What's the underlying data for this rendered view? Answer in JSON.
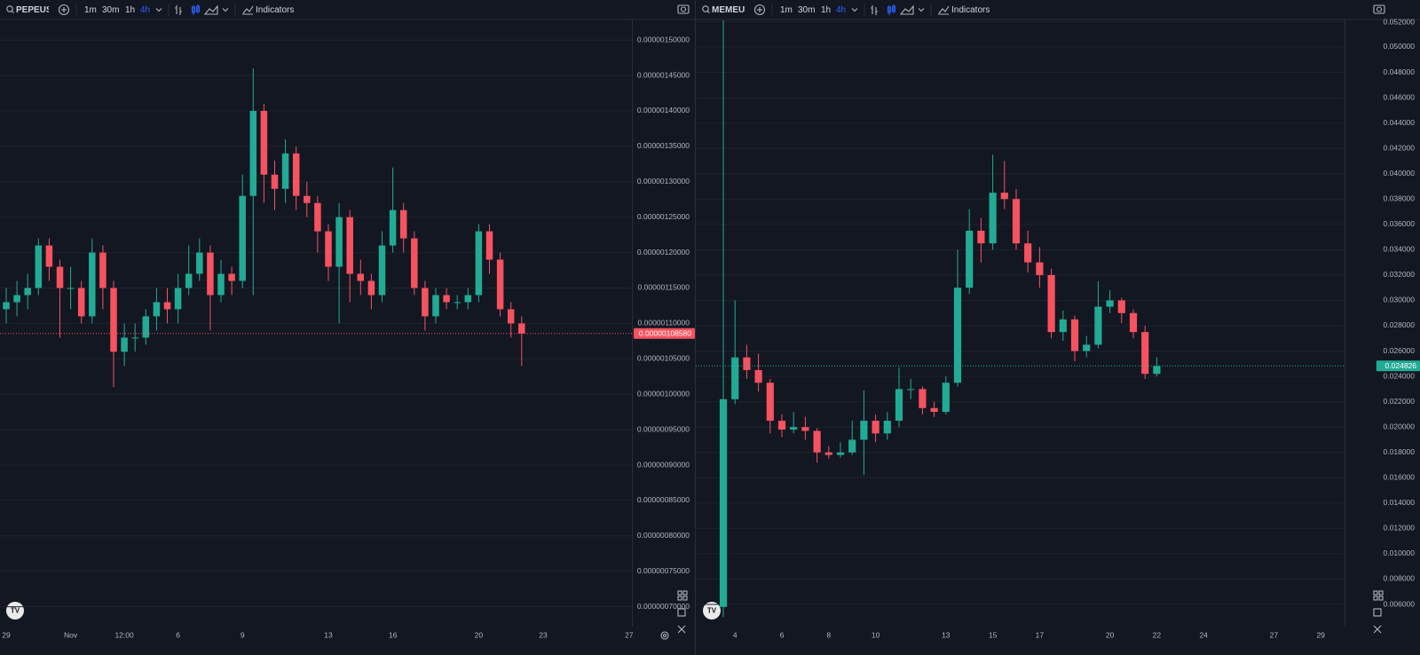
{
  "chart_data": [
    {
      "type": "candlestick",
      "symbol": "PEPEUSDT",
      "intervals": [
        "1m",
        "30m",
        "1h",
        "4h"
      ],
      "indicators": "Indicators",
      "categories": [
        "29",
        null,
        null,
        null,
        null,
        null,
        "Nov",
        null,
        null,
        null,
        null,
        "12:00",
        null,
        null,
        null,
        null,
        "6",
        null,
        null,
        null,
        null,
        null,
        "9",
        null,
        null,
        null,
        null,
        null,
        null,
        null,
        "13",
        null,
        null,
        null,
        null,
        null,
        "16",
        null,
        null,
        null,
        null,
        null,
        null,
        null,
        "20",
        null,
        null,
        null,
        null,
        null,
        "23",
        null,
        null,
        null,
        null,
        null,
        null,
        null,
        "27"
      ],
      "open": [
        1.12e-06,
        1.13e-06,
        1.14e-06,
        1.15e-06,
        1.21e-06,
        1.18e-06,
        1.15e-06,
        1.15e-06,
        1.11e-06,
        1.2e-06,
        1.15e-06,
        1.06e-06,
        1.08e-06,
        1.08e-06,
        1.11e-06,
        1.13e-06,
        1.12e-06,
        1.15e-06,
        1.17e-06,
        1.2e-06,
        1.14e-06,
        1.17e-06,
        1.16e-06,
        1.28e-06,
        1.4e-06,
        1.31e-06,
        1.29e-06,
        1.34e-06,
        1.28e-06,
        1.27e-06,
        1.23e-06,
        1.18e-06,
        1.25e-06,
        1.17e-06,
        1.16e-06,
        1.14e-06,
        1.21e-06,
        1.26e-06,
        1.22e-06,
        1.15e-06,
        1.11e-06,
        1.14e-06,
        1.13e-06,
        1.13e-06,
        1.14e-06,
        1.23e-06,
        1.19e-06,
        1.12e-06,
        1.1e-06,
        null,
        null,
        null,
        null,
        null,
        null,
        null,
        null,
        null,
        null
      ],
      "high": [
        1.15e-06,
        1.16e-06,
        1.17e-06,
        1.22e-06,
        1.22e-06,
        1.19e-06,
        1.18e-06,
        1.16e-06,
        1.22e-06,
        1.21e-06,
        1.16e-06,
        1.1e-06,
        1.1e-06,
        1.12e-06,
        1.15e-06,
        1.15e-06,
        1.17e-06,
        1.21e-06,
        1.22e-06,
        1.21e-06,
        1.19e-06,
        1.18e-06,
        1.31e-06,
        1.46e-06,
        1.41e-06,
        1.33e-06,
        1.36e-06,
        1.35e-06,
        1.3e-06,
        1.28e-06,
        1.24e-06,
        1.27e-06,
        1.26e-06,
        1.19e-06,
        1.17e-06,
        1.23e-06,
        1.32e-06,
        1.27e-06,
        1.23e-06,
        1.16e-06,
        1.15e-06,
        1.15e-06,
        1.14e-06,
        1.15e-06,
        1.24e-06,
        1.24e-06,
        1.2e-06,
        1.13e-06,
        1.11e-06,
        null,
        null,
        null,
        null,
        null,
        null,
        null,
        null,
        null,
        null
      ],
      "low": [
        1.1e-06,
        1.11e-06,
        1.12e-06,
        1.14e-06,
        1.16e-06,
        1.08e-06,
        1.12e-06,
        1.1e-06,
        1.1e-06,
        1.12e-06,
        1.01e-06,
        1.04e-06,
        1.06e-06,
        1.07e-06,
        1.09e-06,
        1.1e-06,
        1.1e-06,
        1.14e-06,
        1.16e-06,
        1.09e-06,
        1.13e-06,
        1.14e-06,
        1.15e-06,
        1.14e-06,
        1.27e-06,
        1.26e-06,
        1.27e-06,
        1.26e-06,
        1.25e-06,
        1.2e-06,
        1.16e-06,
        1.1e-06,
        1.13e-06,
        1.14e-06,
        1.12e-06,
        1.13e-06,
        1.2e-06,
        1.2e-06,
        1.14e-06,
        1.09e-06,
        1.1e-06,
        1.12e-06,
        1.12e-06,
        1.12e-06,
        1.13e-06,
        1.17e-06,
        1.11e-06,
        1.08e-06,
        1.04e-06,
        null,
        null,
        null,
        null,
        null,
        null,
        null,
        null,
        null,
        null
      ],
      "close": [
        1.13e-06,
        1.14e-06,
        1.15e-06,
        1.21e-06,
        1.18e-06,
        1.15e-06,
        1.15e-06,
        1.11e-06,
        1.2e-06,
        1.15e-06,
        1.06e-06,
        1.08e-06,
        1.08e-06,
        1.11e-06,
        1.13e-06,
        1.12e-06,
        1.15e-06,
        1.17e-06,
        1.2e-06,
        1.14e-06,
        1.17e-06,
        1.16e-06,
        1.28e-06,
        1.4e-06,
        1.31e-06,
        1.29e-06,
        1.34e-06,
        1.28e-06,
        1.27e-06,
        1.23e-06,
        1.18e-06,
        1.25e-06,
        1.17e-06,
        1.16e-06,
        1.14e-06,
        1.21e-06,
        1.26e-06,
        1.22e-06,
        1.15e-06,
        1.11e-06,
        1.14e-06,
        1.13e-06,
        1.13e-06,
        1.14e-06,
        1.23e-06,
        1.19e-06,
        1.12e-06,
        1.1e-06,
        1.0858e-06,
        null,
        null,
        null,
        null,
        null,
        null,
        null,
        null,
        null,
        null
      ],
      "ylim": [
        6.72e-07,
        1.529e-06
      ],
      "yticks": [
        {
          "value": 7e-07,
          "label": "0.00000070000"
        },
        {
          "value": 7.5e-07,
          "label": "0.00000075000"
        },
        {
          "value": 8e-07,
          "label": "0.00000080000"
        },
        {
          "value": 8.5e-07,
          "label": "0.00000085000"
        },
        {
          "value": 9e-07,
          "label": "0.00000090000"
        },
        {
          "value": 9.5e-07,
          "label": "0.00000095000"
        },
        {
          "value": 1e-06,
          "label": "0.00000100000"
        },
        {
          "value": 1.05e-06,
          "label": "0.00000105000"
        },
        {
          "value": 1.1e-06,
          "label": "0.00000110000"
        },
        {
          "value": 1.15e-06,
          "label": "0.00000115000"
        },
        {
          "value": 1.2e-06,
          "label": "0.00000120000"
        },
        {
          "value": 1.25e-06,
          "label": "0.00000125000"
        },
        {
          "value": 1.3e-06,
          "label": "0.00000130000"
        },
        {
          "value": 1.35e-06,
          "label": "0.00000135000"
        },
        {
          "value": 1.4e-06,
          "label": "0.00000140000"
        },
        {
          "value": 1.45e-06,
          "label": "0.00000145000"
        },
        {
          "value": 1.5e-06,
          "label": "0.00000150000"
        }
      ],
      "last_price": {
        "value": 1.0858e-06,
        "label": "0.00000108580"
      },
      "up_color": "#22ab94",
      "down_color": "#f7525f",
      "grid": true
    },
    {
      "type": "candlestick",
      "symbol": "MEMEUSDT",
      "intervals": [
        "1m",
        "30m",
        "1h",
        "4h"
      ],
      "indicators": "Indicators",
      "categories": [
        null,
        "4",
        null,
        null,
        null,
        "6",
        null,
        null,
        null,
        "8",
        null,
        null,
        null,
        "10",
        null,
        null,
        null,
        null,
        null,
        "13",
        null,
        null,
        null,
        "15",
        null,
        null,
        null,
        "17",
        null,
        null,
        null,
        null,
        null,
        "20",
        null,
        null,
        null,
        "22",
        null,
        null,
        null,
        "24",
        null,
        null,
        null,
        null,
        null,
        "27",
        null,
        null,
        null,
        "29"
      ],
      "open": [
        0.0058,
        0.0222,
        0.0255,
        0.0245,
        0.0235,
        0.0205,
        0.0198,
        0.02,
        0.0197,
        0.018,
        0.0178,
        0.018,
        0.019,
        0.0205,
        0.0195,
        0.0205,
        0.023,
        0.023,
        0.0215,
        0.0212,
        0.0235,
        0.031,
        0.0355,
        0.0345,
        0.0385,
        0.038,
        0.0345,
        0.033,
        0.032,
        0.0275,
        0.0285,
        0.026,
        0.0265,
        0.0295,
        0.03,
        0.029,
        0.0275,
        0.0242,
        null,
        null,
        null,
        null,
        null,
        null,
        null,
        null,
        null,
        null,
        null,
        null,
        null,
        null
      ],
      "high": [
        0.0521,
        0.03,
        0.0265,
        0.0258,
        0.0238,
        0.021,
        0.0212,
        0.0208,
        0.0199,
        0.0185,
        0.0188,
        0.0205,
        0.0229,
        0.021,
        0.0212,
        0.0247,
        0.0238,
        0.0232,
        0.022,
        0.024,
        0.034,
        0.0372,
        0.0365,
        0.0415,
        0.041,
        0.0388,
        0.0355,
        0.0342,
        0.0325,
        0.0292,
        0.0288,
        0.0272,
        0.0315,
        0.0308,
        0.0302,
        0.0293,
        0.028,
        0.0255,
        null,
        null,
        null,
        null,
        null,
        null,
        null,
        null,
        null,
        null,
        null,
        null,
        null,
        null
      ],
      "low": [
        0.005,
        0.0218,
        0.0238,
        0.0228,
        0.0195,
        0.0192,
        0.0195,
        0.019,
        0.0172,
        0.0175,
        0.0176,
        0.0178,
        0.0162,
        0.0188,
        0.019,
        0.02,
        0.0222,
        0.021,
        0.0208,
        0.021,
        0.0232,
        0.0305,
        0.033,
        0.034,
        0.0372,
        0.034,
        0.0322,
        0.031,
        0.027,
        0.0268,
        0.0252,
        0.0255,
        0.0262,
        0.029,
        0.0282,
        0.027,
        0.0238,
        0.024,
        null,
        null,
        null,
        null,
        null,
        null,
        null,
        null,
        null,
        null,
        null,
        null,
        null,
        null
      ],
      "close": [
        0.0222,
        0.0255,
        0.0245,
        0.0235,
        0.0205,
        0.0198,
        0.02,
        0.0197,
        0.018,
        0.0178,
        0.018,
        0.019,
        0.0205,
        0.0195,
        0.0205,
        0.023,
        0.023,
        0.0215,
        0.0212,
        0.0235,
        0.031,
        0.0355,
        0.0345,
        0.0385,
        0.038,
        0.0345,
        0.033,
        0.032,
        0.0275,
        0.0285,
        0.026,
        0.0265,
        0.0295,
        0.03,
        0.029,
        0.0275,
        0.0242,
        0.024826,
        null,
        null,
        null,
        null,
        null,
        null,
        null,
        null,
        null,
        null,
        null,
        null,
        null,
        null
      ],
      "ylim": [
        0.00425,
        0.05217
      ],
      "yticks": [
        {
          "value": 0.006,
          "label": "0.006000"
        },
        {
          "value": 0.008,
          "label": "0.008000"
        },
        {
          "value": 0.01,
          "label": "0.010000"
        },
        {
          "value": 0.012,
          "label": "0.012000"
        },
        {
          "value": 0.014,
          "label": "0.014000"
        },
        {
          "value": 0.016,
          "label": "0.016000"
        },
        {
          "value": 0.018,
          "label": "0.018000"
        },
        {
          "value": 0.02,
          "label": "0.020000"
        },
        {
          "value": 0.022,
          "label": "0.022000"
        },
        {
          "value": 0.024,
          "label": "0.024000"
        },
        {
          "value": 0.026,
          "label": "0.026000"
        },
        {
          "value": 0.028,
          "label": "0.028000"
        },
        {
          "value": 0.03,
          "label": "0.030000"
        },
        {
          "value": 0.032,
          "label": "0.032000"
        },
        {
          "value": 0.034,
          "label": "0.034000"
        },
        {
          "value": 0.036,
          "label": "0.036000"
        },
        {
          "value": 0.038,
          "label": "0.038000"
        },
        {
          "value": 0.04,
          "label": "0.040000"
        },
        {
          "value": 0.042,
          "label": "0.042000"
        },
        {
          "value": 0.044,
          "label": "0.044000"
        },
        {
          "value": 0.046,
          "label": "0.046000"
        },
        {
          "value": 0.048,
          "label": "0.048000"
        },
        {
          "value": 0.05,
          "label": "0.050000"
        },
        {
          "value": 0.052,
          "label": "0.052000"
        }
      ],
      "last_price": {
        "value": 0.024826,
        "label": "0.024826"
      },
      "up_color": "#22ab94",
      "down_color": "#f7525f",
      "grid": true
    }
  ]
}
